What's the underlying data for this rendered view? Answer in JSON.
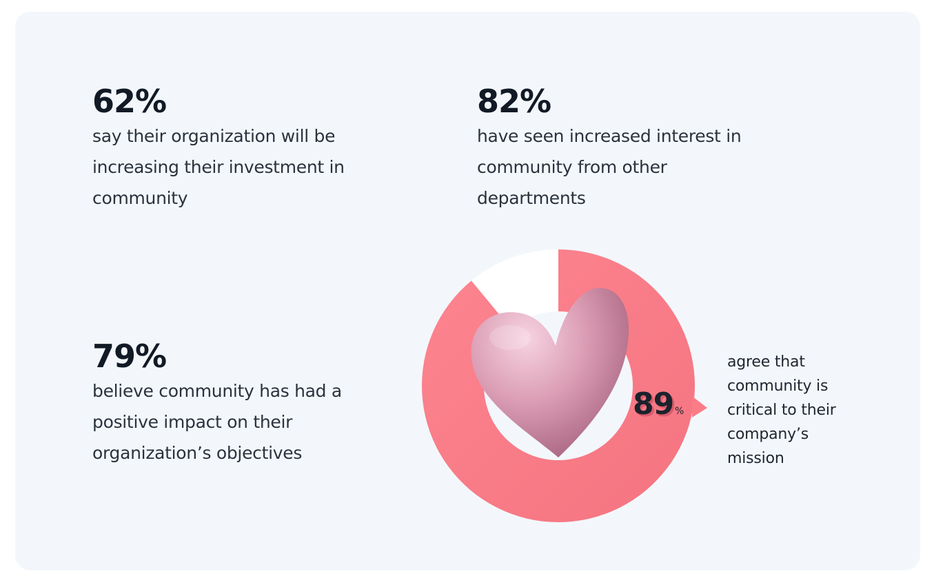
{
  "stats": [
    {
      "value": "62%",
      "description": "say their organization will be increasing their investment in community"
    },
    {
      "value": "82%",
      "description": "have seen increased interest in community from other departments"
    },
    {
      "value": "79%",
      "description": "believe community has had a positive impact on their organization’s objectives"
    }
  ],
  "donut": {
    "value": "89",
    "unit": "%",
    "fraction": 0.89,
    "description": "agree that community is critical to their company’s mission",
    "ring_color": "#fb7c87",
    "track_color": "#ffffff",
    "heart_icon": "heart-icon"
  },
  "colors": {
    "background": "#ffffff",
    "card": "#f3f7fb",
    "text_dark": "#121a26",
    "accent": "#fb7c87"
  }
}
